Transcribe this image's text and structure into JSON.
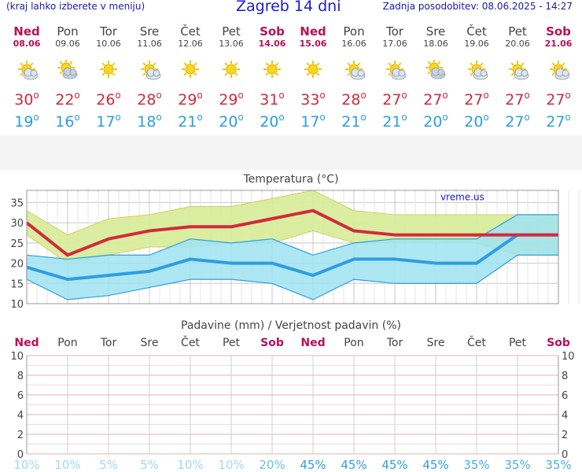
{
  "header": {
    "hint": "(kraj lahko izberete v meniju)",
    "title": "Zagreb 14 dni",
    "updated": "Zadnja posodobitev: 08.06.2025 - 14:27"
  },
  "days": [
    {
      "name": "Ned",
      "date": "08.06",
      "weekend": true,
      "icon": "partly-cloudy-icon",
      "tmax": "30",
      "tmin": "19"
    },
    {
      "name": "Pon",
      "date": "09.06",
      "weekend": false,
      "icon": "cloudy-icon",
      "tmax": "22",
      "tmin": "16"
    },
    {
      "name": "Tor",
      "date": "10.06",
      "weekend": false,
      "icon": "sun-icon",
      "tmax": "26",
      "tmin": "17"
    },
    {
      "name": "Sre",
      "date": "11.06",
      "weekend": false,
      "icon": "partly-cloudy-icon",
      "tmax": "28",
      "tmin": "18"
    },
    {
      "name": "Čet",
      "date": "12.06",
      "weekend": false,
      "icon": "sun-icon",
      "tmax": "29",
      "tmin": "21"
    },
    {
      "name": "Pet",
      "date": "13.06",
      "weekend": false,
      "icon": "sun-icon",
      "tmax": "29",
      "tmin": "20"
    },
    {
      "name": "Sob",
      "date": "14.06",
      "weekend": true,
      "icon": "sun-icon",
      "tmax": "31",
      "tmin": "20"
    },
    {
      "name": "Ned",
      "date": "15.06",
      "weekend": true,
      "icon": "sun-icon",
      "tmax": "33",
      "tmin": "17"
    },
    {
      "name": "Pon",
      "date": "16.06",
      "weekend": false,
      "icon": "partly-cloudy-icon",
      "tmax": "28",
      "tmin": "21"
    },
    {
      "name": "Tor",
      "date": "17.06",
      "weekend": false,
      "icon": "partly-cloudy-icon",
      "tmax": "27",
      "tmin": "21"
    },
    {
      "name": "Sre",
      "date": "18.06",
      "weekend": false,
      "icon": "cloudy-icon",
      "tmax": "27",
      "tmin": "20"
    },
    {
      "name": "Čet",
      "date": "19.06",
      "weekend": false,
      "icon": "partly-cloudy-icon",
      "tmax": "27",
      "tmin": "20"
    },
    {
      "name": "Pet",
      "date": "20.06",
      "weekend": false,
      "icon": "partly-cloudy-icon",
      "tmax": "27",
      "tmin": "27"
    },
    {
      "name": "Sob",
      "date": "21.06",
      "weekend": true,
      "icon": "partly-cloudy-icon",
      "tmax": "27",
      "tmin": "27"
    }
  ],
  "colors": {
    "max": "#d22a3c",
    "min": "#2e9de0",
    "weekend": "#b8105a",
    "max_band": "#d8ec9c",
    "min_band": "#9fe3f2",
    "overlap": "#86d07f"
  },
  "chart_data": [
    {
      "type": "line",
      "title": "Temperatura (°C)",
      "watermark": "vreme.us",
      "categories": [
        "08.06",
        "09.06",
        "10.06",
        "11.06",
        "12.06",
        "13.06",
        "14.06",
        "15.06",
        "16.06",
        "17.06",
        "18.06",
        "19.06",
        "20.06",
        "21.06"
      ],
      "ylim": [
        10,
        38
      ],
      "yticks": [
        "10",
        "15",
        "20",
        "25",
        "30",
        "35"
      ],
      "grid": true,
      "series": [
        {
          "name": "max",
          "values": [
            30,
            22,
            26,
            28,
            29,
            29,
            31,
            33,
            28,
            27,
            27,
            27,
            27,
            27
          ],
          "band_high": [
            33,
            27,
            31,
            32,
            34,
            34,
            36,
            38,
            33,
            32,
            32,
            32,
            32,
            32
          ],
          "band_low": [
            27,
            20,
            22,
            24,
            24,
            25,
            25,
            28,
            25,
            25,
            25,
            25,
            22,
            22
          ]
        },
        {
          "name": "min",
          "values": [
            19,
            16,
            17,
            18,
            21,
            20,
            20,
            17,
            21,
            21,
            20,
            20,
            27,
            27
          ],
          "band_high": [
            22,
            21,
            22,
            22,
            26,
            25,
            26,
            22,
            25,
            26,
            26,
            26,
            32,
            32
          ],
          "band_low": [
            16,
            11,
            12,
            14,
            16,
            16,
            15,
            11,
            16,
            15,
            15,
            15,
            22,
            22
          ]
        }
      ]
    },
    {
      "type": "bar",
      "title": "Padavine (mm) / Verjetnost padavin (%)",
      "categories": [
        "Ned",
        "Pon",
        "Tor",
        "Sre",
        "Čet",
        "Pet",
        "Sob",
        "Ned",
        "Pon",
        "Tor",
        "Sre",
        "Čet",
        "Pet",
        "Sob"
      ],
      "values": [
        0,
        0,
        0,
        0,
        0,
        0,
        0,
        0,
        0,
        0,
        0,
        0,
        0,
        0
      ],
      "probability": [
        "10%",
        "10%",
        "5%",
        "5%",
        "10%",
        "10%",
        "20%",
        "45%",
        "45%",
        "45%",
        "45%",
        "35%",
        "35%",
        "35%"
      ],
      "ylim": [
        0,
        10
      ],
      "yticks": [
        "0",
        "2",
        "4",
        "6",
        "8",
        "10"
      ],
      "grid": true
    }
  ]
}
